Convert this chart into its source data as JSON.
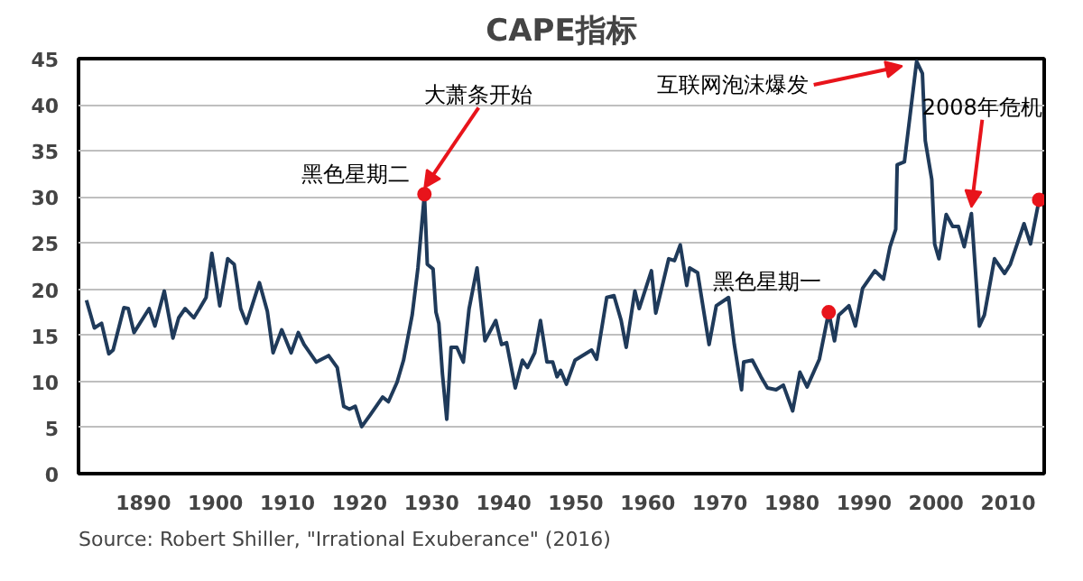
{
  "chart_data": {
    "type": "line",
    "title": "CAPE指标",
    "xlim": [
      1881,
      2015
    ],
    "ylim": [
      0,
      45
    ],
    "xticks": [
      1890,
      1900,
      1910,
      1920,
      1930,
      1940,
      1950,
      1960,
      1970,
      1980,
      1990,
      2000,
      2010
    ],
    "yticks": [
      0,
      5,
      10,
      15,
      20,
      25,
      30,
      35,
      40,
      45
    ],
    "grid": "y",
    "series": [
      {
        "color": "#1f3a5a",
        "x": [
          1882.1,
          1883.2,
          1884.2,
          1885.2,
          1885.8,
          1887.3,
          1887.9,
          1888.7,
          1890.8,
          1891.6,
          1892.9,
          1894.1,
          1894.9,
          1895.8,
          1897,
          1897.8,
          1898.7,
          1899.5,
          1900.6,
          1901.7,
          1902.6,
          1903.5,
          1904.3,
          1906.1,
          1907.2,
          1908,
          1909.2,
          1910.5,
          1911.5,
          1912.3,
          1914,
          1915.7,
          1916.9,
          1917.8,
          1918.6,
          1919.4,
          1920.3,
          1921.5,
          1923.2,
          1924,
          1925.2,
          1926.1,
          1927.3,
          1928.1,
          1929,
          1929.4,
          1930.2,
          1930.6,
          1931,
          1931.5,
          1932.1,
          1932.7,
          1933.5,
          1934.4,
          1935.2,
          1936.3,
          1937.4,
          1938.9,
          1939.7,
          1940.4,
          1941.6,
          1942.6,
          1943.3,
          1944.3,
          1945.1,
          1946,
          1946.8,
          1947.4,
          1947.9,
          1948.7,
          1949.9,
          1952.2,
          1952.9,
          1954.3,
          1955.3,
          1956.3,
          1957,
          1958.2,
          1958.8,
          1960.5,
          1961.1,
          1962.9,
          1963.7,
          1964.5,
          1965.4,
          1965.8,
          1966.9,
          1968.5,
          1969.5,
          1971.2,
          1972,
          1973,
          1973.3,
          1974.5,
          1975.7,
          1976.6,
          1977.8,
          1978.8,
          1980.1,
          1981.1,
          1982.1,
          1983.8,
          1985.1,
          1985.9,
          1986.5,
          1987.9,
          1988.8,
          1989.8,
          1991.5,
          1992.7,
          1993.6,
          1994.4,
          1994.6,
          1995.6,
          1997.3,
          1998.1,
          1998.5,
          1999.4,
          1999.8,
          2000.4,
          2001.4,
          2002.3,
          2003.1,
          2003.9,
          2004.9,
          2006,
          2006.7,
          2008.1,
          2009.5,
          2010.3,
          2012.2,
          2013.1,
          2014.3
        ],
        "values": [
          18.8,
          15.8,
          16.3,
          13,
          13.4,
          18,
          17.9,
          15.3,
          17.9,
          16,
          19.8,
          14.7,
          16.9,
          17.9,
          16.9,
          17.9,
          19.1,
          23.9,
          18.2,
          23.3,
          22.7,
          17.9,
          16.3,
          20.7,
          17.6,
          13.1,
          15.6,
          13.1,
          15.3,
          14,
          12.1,
          12.8,
          11.5,
          7.3,
          7,
          7.3,
          5.1,
          6.4,
          8.3,
          7.8,
          9.9,
          12.3,
          17.2,
          22.3,
          30.3,
          22.7,
          22.2,
          17.5,
          16.3,
          10.8,
          5.9,
          13.7,
          13.7,
          12.1,
          17.9,
          22.3,
          14.4,
          16.6,
          14,
          14.2,
          9.3,
          12.3,
          11.5,
          13.1,
          16.6,
          12.1,
          12.1,
          10.5,
          11.2,
          9.7,
          12.3,
          13.4,
          12.4,
          19.1,
          19.3,
          16.6,
          13.7,
          19.8,
          17.9,
          22,
          17.4,
          23.3,
          23.1,
          24.8,
          20.4,
          22.3,
          21.8,
          14,
          18.2,
          19.1,
          14,
          9.1,
          12.1,
          12.3,
          10.5,
          9.3,
          9.1,
          9.6,
          6.8,
          11,
          9.4,
          12.4,
          17.5,
          14.4,
          17.2,
          18.2,
          16,
          20.1,
          22,
          21.1,
          24.6,
          26.5,
          33.5,
          33.8,
          44.7,
          43.4,
          36.1,
          31.9,
          24.9,
          23.3,
          28.1,
          26.8,
          26.8,
          24.6,
          28.2,
          16,
          17.2,
          23.3,
          21.7,
          22.7,
          27.1,
          24.9,
          29.7
        ]
      },
      {
        "type": "scatter",
        "marker": "circle",
        "color": "#e8141b",
        "x": [
          1929,
          1985.1,
          2014.3
        ],
        "values": [
          30.3,
          17.5,
          29.7
        ]
      }
    ],
    "annotations": [
      {
        "text": "黑色星期二",
        "x": 1929,
        "y": 30.3
      },
      {
        "text": "大萧条开始",
        "x": 1929,
        "y": 30.3
      },
      {
        "text": "黑色星期一",
        "x": 1985.1,
        "y": 17.5
      },
      {
        "text": "互联网泡沫爆发",
        "x": 1997.3,
        "y": 44.7
      },
      {
        "text": "2008年危机",
        "x": 2004.9,
        "y": 28.2
      },
      "Source: Robert Shiller, \"Irrational Exuberance\" (2016)"
    ]
  }
}
